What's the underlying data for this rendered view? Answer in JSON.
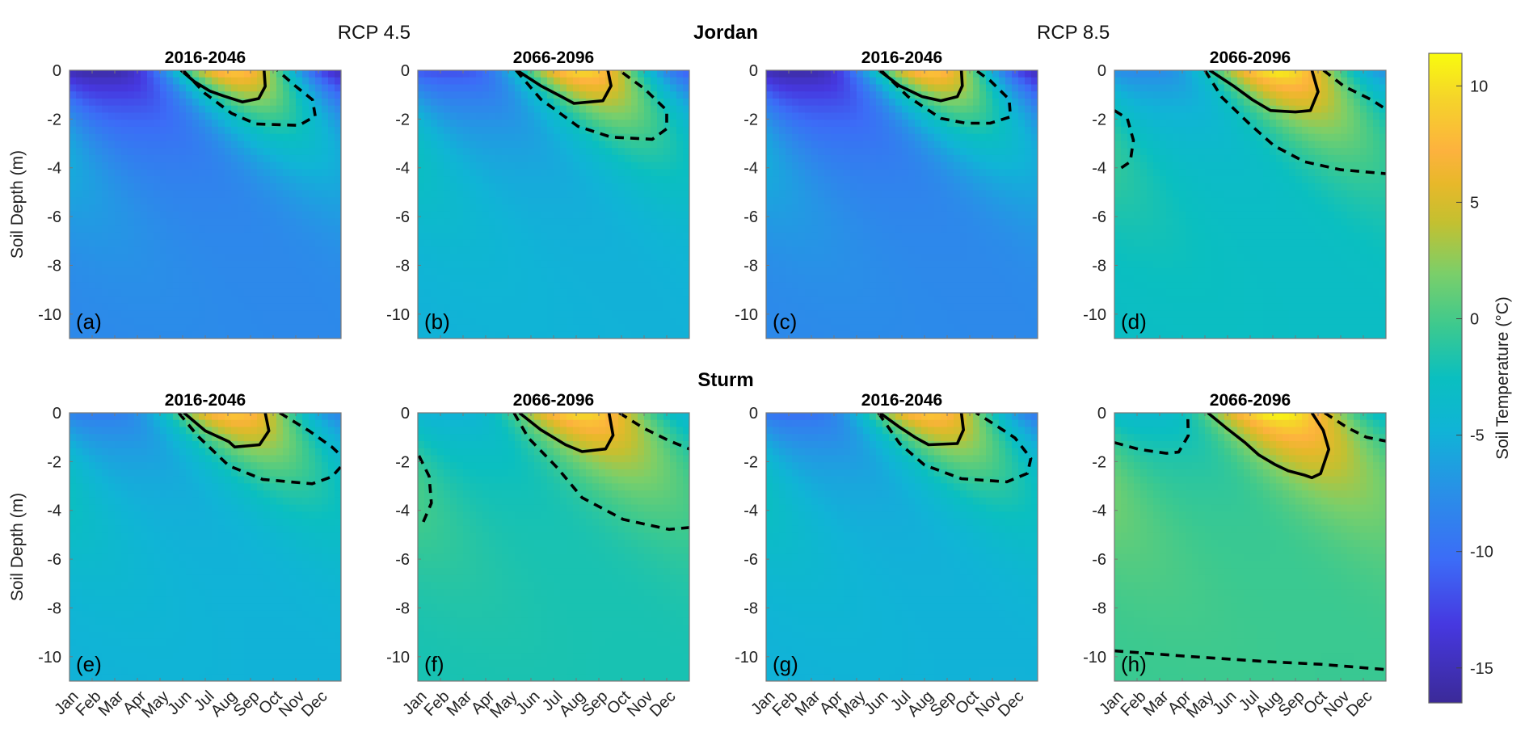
{
  "figure": {
    "row_titles": [
      "Jordan",
      "Sturm"
    ],
    "scenario_labels": [
      "RCP 4.5",
      "RCP 8.5"
    ]
  },
  "chart_data": {
    "type": "heatmap",
    "title": "",
    "ylabel": "Soil Depth (m)",
    "xlabel": "",
    "x_unit": "month of year (0 = start of Jan)",
    "xlim": [
      0,
      12
    ],
    "x_tick_labels": [
      "Jan",
      "Feb",
      "Mar",
      "Apr",
      "May",
      "Jun",
      "Jul",
      "Aug",
      "Sep",
      "Oct",
      "Nov",
      "Dec"
    ],
    "ylim": [
      -11,
      0
    ],
    "y_ticks": [
      0,
      -2,
      -4,
      -6,
      -8,
      -10
    ],
    "y_tick_labels": [
      "0",
      "-2",
      "-4",
      "-6",
      "-8",
      "-10"
    ],
    "colorbar": {
      "label": "Soil Temperature (°C)",
      "range": [
        -16.5,
        11.4
      ],
      "ticks": [
        10,
        5,
        0,
        -5,
        -10,
        -15
      ],
      "tick_labels": [
        "10",
        "5",
        "0",
        "-5",
        "-10",
        "-15"
      ],
      "colormap": [
        "#3b2a98",
        "#4638e0",
        "#3c6cf7",
        "#2a8ee8",
        "#10b4d6",
        "#0abfc0",
        "#3cc98f",
        "#7acf6a",
        "#c4c030",
        "#e8b82a",
        "#fdb23e",
        "#f5d42a",
        "#f9fb0e"
      ]
    },
    "panels": [
      {
        "label": "(a)",
        "site": "Jordan",
        "scenario": "RCP 4.5",
        "period": "2016-2046",
        "surface_min_C": -16,
        "surface_max_C": 9,
        "deep_C": -8,
        "contours": [
          {
            "style": "solid",
            "points": [
              [
                4.93,
                0
              ],
              [
                5.5,
                -0.45
              ],
              [
                6.2,
                -0.85
              ],
              [
                6.8,
                -1.05
              ],
              [
                7.64,
                -1.3
              ],
              [
                8.36,
                -1.16
              ],
              [
                8.65,
                -0.66
              ],
              [
                8.6,
                0
              ]
            ]
          },
          {
            "style": "dashed",
            "points": [
              [
                5.02,
                0
              ],
              [
                5.98,
                -0.94
              ],
              [
                7.17,
                -1.77
              ],
              [
                8.24,
                -2.2
              ],
              [
                10.14,
                -2.26
              ],
              [
                10.86,
                -1.88
              ],
              [
                10.74,
                -1.21
              ],
              [
                10.0,
                -0.66
              ],
              [
                9.19,
                0
              ]
            ]
          }
        ]
      },
      {
        "label": "(b)",
        "site": "Jordan",
        "scenario": "RCP 4.5",
        "period": "2066-2096",
        "surface_min_C": -12,
        "surface_max_C": 10,
        "deep_C": -5,
        "contours": [
          {
            "style": "solid",
            "points": [
              [
                4.38,
                0
              ],
              [
                5.44,
                -0.64
              ],
              [
                6.35,
                -1.08
              ],
              [
                6.9,
                -1.36
              ],
              [
                8.18,
                -1.25
              ],
              [
                8.54,
                -0.64
              ],
              [
                8.4,
                0
              ]
            ]
          },
          {
            "style": "dashed",
            "points": [
              [
                4.34,
                0
              ],
              [
                5.44,
                -1.19
              ],
              [
                7.08,
                -2.3
              ],
              [
                8.54,
                -2.74
              ],
              [
                10.36,
                -2.83
              ],
              [
                11.0,
                -2.4
              ],
              [
                11.0,
                -1.64
              ],
              [
                10.0,
                -0.75
              ],
              [
                8.9,
                0
              ]
            ]
          }
        ]
      },
      {
        "label": "(c)",
        "site": "Jordan",
        "scenario": "RCP 8.5",
        "period": "2016-2046",
        "surface_min_C": -16,
        "surface_max_C": 9,
        "deep_C": -8,
        "contours": [
          {
            "style": "solid",
            "points": [
              [
                4.99,
                0
              ],
              [
                5.9,
                -0.64
              ],
              [
                6.9,
                -1.08
              ],
              [
                7.72,
                -1.25
              ],
              [
                8.45,
                -1.08
              ],
              [
                8.67,
                -0.64
              ],
              [
                8.63,
                0
              ]
            ]
          },
          {
            "style": "dashed",
            "points": [
              [
                5.08,
                0
              ],
              [
                6.27,
                -1.08
              ],
              [
                7.72,
                -1.97
              ],
              [
                8.82,
                -2.17
              ],
              [
                9.9,
                -2.17
              ],
              [
                10.8,
                -1.91
              ],
              [
                10.74,
                -1.19
              ],
              [
                9.9,
                -0.42
              ],
              [
                9.27,
                0
              ]
            ]
          }
        ]
      },
      {
        "label": "(d)",
        "site": "Jordan",
        "scenario": "RCP 8.5",
        "period": "2066-2096",
        "surface_min_C": -8,
        "surface_max_C": 11,
        "deep_C": -3,
        "contours": [
          {
            "style": "solid",
            "points": [
              [
                4.21,
                0
              ],
              [
                5.29,
                -0.66
              ],
              [
                6.1,
                -1.21
              ],
              [
                6.9,
                -1.65
              ],
              [
                8.0,
                -1.71
              ],
              [
                8.66,
                -1.65
              ],
              [
                9.0,
                -0.88
              ],
              [
                8.73,
                0
              ]
            ]
          },
          {
            "style": "dashed",
            "points": [
              [
                4.0,
                0
              ],
              [
                4.74,
                -1.1
              ],
              [
                5.97,
                -2.2
              ],
              [
                7.05,
                -3.09
              ],
              [
                8.4,
                -3.75
              ],
              [
                10.0,
                -4.08
              ],
              [
                12,
                -4.24
              ]
            ]
          },
          {
            "style": "dashed",
            "points": [
              [
                9.24,
                0
              ],
              [
                10.15,
                -0.66
              ],
              [
                11.36,
                -1.21
              ],
              [
                12,
                -1.6
              ]
            ]
          },
          {
            "style": "dashed",
            "points": [
              [
                0,
                -1.65
              ],
              [
                0.57,
                -1.98
              ],
              [
                0.84,
                -2.87
              ],
              [
                0.7,
                -3.75
              ],
              [
                0.1,
                -4.13
              ]
            ]
          }
        ]
      },
      {
        "label": "(e)",
        "site": "Sturm",
        "scenario": "RCP 4.5",
        "period": "2016-2046",
        "surface_min_C": -9,
        "surface_max_C": 9,
        "deep_C": -5,
        "contours": [
          {
            "style": "solid",
            "points": [
              [
                5.06,
                0
              ],
              [
                6.0,
                -0.74
              ],
              [
                7.04,
                -1.18
              ],
              [
                7.3,
                -1.4
              ],
              [
                8.4,
                -1.31
              ],
              [
                8.81,
                -0.74
              ],
              [
                8.65,
                0
              ]
            ]
          },
          {
            "style": "dashed",
            "points": [
              [
                4.83,
                0
              ],
              [
                5.68,
                -0.96
              ],
              [
                7.04,
                -2.17
              ],
              [
                8.54,
                -2.73
              ],
              [
                10.72,
                -2.91
              ],
              [
                11.6,
                -2.62
              ],
              [
                12,
                -2.2
              ]
            ]
          },
          {
            "style": "dashed",
            "points": [
              [
                9.29,
                0
              ],
              [
                10.59,
                -0.74
              ],
              [
                11.6,
                -1.4
              ],
              [
                12,
                -1.75
              ]
            ]
          }
        ]
      },
      {
        "label": "(f)",
        "site": "Sturm",
        "scenario": "RCP 4.5",
        "period": "2066-2096",
        "surface_min_C": -5,
        "surface_max_C": 10,
        "deep_C": -2,
        "contours": [
          {
            "style": "solid",
            "points": [
              [
                4.49,
                0
              ],
              [
                5.44,
                -0.7
              ],
              [
                6.53,
                -1.31
              ],
              [
                7.26,
                -1.59
              ],
              [
                8.3,
                -1.48
              ],
              [
                8.63,
                -0.92
              ],
              [
                8.45,
                0
              ]
            ]
          },
          {
            "style": "dashed",
            "points": [
              [
                4.25,
                0
              ],
              [
                4.89,
                -1.03
              ],
              [
                6.17,
                -2.26
              ],
              [
                7.26,
                -3.48
              ],
              [
                9.08,
                -4.37
              ],
              [
                11.1,
                -4.78
              ],
              [
                12,
                -4.7
              ]
            ]
          },
          {
            "style": "dashed",
            "points": [
              [
                8.9,
                0
              ],
              [
                10.0,
                -0.64
              ],
              [
                11.1,
                -1.14
              ],
              [
                12,
                -1.48
              ]
            ]
          },
          {
            "style": "dashed",
            "points": [
              [
                0.05,
                -1.76
              ],
              [
                0.5,
                -2.6
              ],
              [
                0.6,
                -3.7
              ],
              [
                0.24,
                -4.48
              ]
            ]
          }
        ]
      },
      {
        "label": "(g)",
        "site": "Sturm",
        "scenario": "RCP 8.5",
        "period": "2016-2046",
        "surface_min_C": -10,
        "surface_max_C": 9,
        "deep_C": -5,
        "contours": [
          {
            "style": "solid",
            "points": [
              [
                5.03,
                0
              ],
              [
                5.9,
                -0.59
              ],
              [
                6.63,
                -1.03
              ],
              [
                7.18,
                -1.31
              ],
              [
                8.45,
                -1.26
              ],
              [
                8.72,
                -0.7
              ],
              [
                8.63,
                0
              ]
            ]
          },
          {
            "style": "dashed",
            "points": [
              [
                4.96,
                0
              ],
              [
                5.9,
                -1.26
              ],
              [
                7.0,
                -2.14
              ],
              [
                8.63,
                -2.7
              ],
              [
                10.64,
                -2.83
              ],
              [
                11.55,
                -2.48
              ],
              [
                11.7,
                -1.87
              ],
              [
                11.0,
                -1.03
              ],
              [
                10.1,
                -0.48
              ],
              [
                9.28,
                0
              ]
            ]
          }
        ]
      },
      {
        "label": "(h)",
        "site": "Sturm",
        "scenario": "RCP 8.5",
        "period": "2066-2096",
        "surface_min_C": -4,
        "surface_max_C": 11.5,
        "deep_C": -0.5,
        "contours": [
          {
            "style": "solid",
            "points": [
              [
                4.13,
                0
              ],
              [
                4.93,
                -0.61
              ],
              [
                5.77,
                -1.22
              ],
              [
                6.37,
                -1.72
              ],
              [
                7.08,
                -2.11
              ],
              [
                7.68,
                -2.38
              ],
              [
                8.39,
                -2.55
              ],
              [
                8.73,
                -2.66
              ],
              [
                9.11,
                -2.49
              ],
              [
                9.47,
                -1.5
              ],
              [
                9.23,
                -0.72
              ],
              [
                8.73,
                0
              ]
            ]
          },
          {
            "style": "dashed",
            "points": [
              [
                0,
                -1.22
              ],
              [
                1.11,
                -1.5
              ],
              [
                2.3,
                -1.66
              ],
              [
                2.84,
                -1.61
              ],
              [
                3.26,
                -0.94
              ],
              [
                3.24,
                0
              ]
            ]
          },
          {
            "style": "dashed",
            "points": [
              [
                9.29,
                0
              ],
              [
                10.3,
                -0.61
              ],
              [
                11.14,
                -1.0
              ],
              [
                12,
                -1.16
              ]
            ]
          },
          {
            "style": "dashed",
            "points": [
              [
                0,
                -9.76
              ],
              [
                3.14,
                -9.98
              ],
              [
                6.72,
                -10.2
              ],
              [
                9.11,
                -10.31
              ],
              [
                12,
                -10.53
              ]
            ]
          }
        ]
      }
    ]
  }
}
